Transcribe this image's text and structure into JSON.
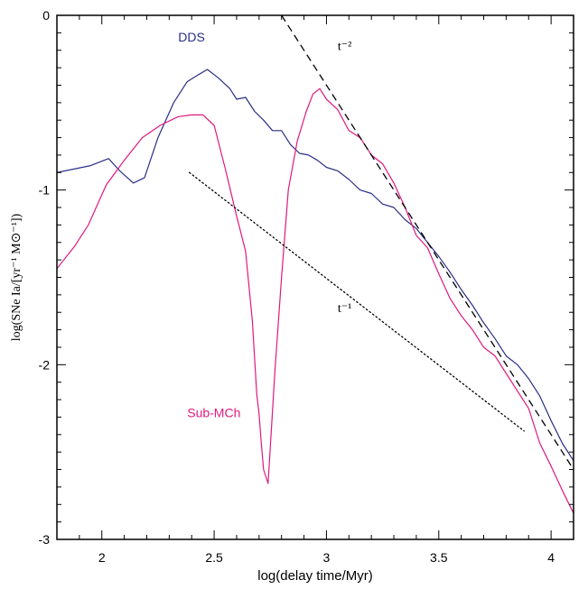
{
  "chart_data": {
    "type": "line",
    "xlabel": "log(delay time/Myr)",
    "ylabel": "log(SNe Ia/[yr⁻¹ M⊙⁻¹])",
    "xlim": [
      1.8,
      4.1
    ],
    "ylim": [
      -3,
      0
    ],
    "xticks": [
      2,
      2.5,
      3,
      3.5,
      4
    ],
    "xtick_labels": [
      "2",
      "2.5",
      "3",
      "3.5",
      "4"
    ],
    "yticks": [
      0,
      -1,
      -2,
      -3
    ],
    "ytick_labels": [
      "0",
      "-1",
      "-2",
      "-3"
    ],
    "grid": false,
    "colors": {
      "dds": "#2a2f86",
      "sub": "#e0187f",
      "ref": "#000000"
    },
    "series": [
      {
        "name": "DDS",
        "style": "solid",
        "points": [
          [
            1.8,
            -0.9
          ],
          [
            1.95,
            -0.86
          ],
          [
            2.03,
            -0.82
          ],
          [
            2.08,
            -0.89
          ],
          [
            2.14,
            -0.96
          ],
          [
            2.19,
            -0.93
          ],
          [
            2.25,
            -0.7
          ],
          [
            2.32,
            -0.5
          ],
          [
            2.38,
            -0.38
          ],
          [
            2.43,
            -0.34
          ],
          [
            2.47,
            -0.31
          ],
          [
            2.52,
            -0.36
          ],
          [
            2.57,
            -0.42
          ],
          [
            2.6,
            -0.48
          ],
          [
            2.64,
            -0.47
          ],
          [
            2.68,
            -0.55
          ],
          [
            2.72,
            -0.6
          ],
          [
            2.76,
            -0.66
          ],
          [
            2.8,
            -0.66
          ],
          [
            2.84,
            -0.74
          ],
          [
            2.88,
            -0.79
          ],
          [
            2.92,
            -0.8
          ],
          [
            2.96,
            -0.83
          ],
          [
            3.0,
            -0.87
          ],
          [
            3.05,
            -0.89
          ],
          [
            3.1,
            -0.94
          ],
          [
            3.15,
            -1.0
          ],
          [
            3.2,
            -1.02
          ],
          [
            3.25,
            -1.08
          ],
          [
            3.3,
            -1.1
          ],
          [
            3.35,
            -1.17
          ],
          [
            3.4,
            -1.22
          ],
          [
            3.45,
            -1.3
          ],
          [
            3.5,
            -1.38
          ],
          [
            3.55,
            -1.47
          ],
          [
            3.6,
            -1.57
          ],
          [
            3.65,
            -1.66
          ],
          [
            3.7,
            -1.76
          ],
          [
            3.75,
            -1.85
          ],
          [
            3.8,
            -1.95
          ],
          [
            3.85,
            -2.0
          ],
          [
            3.9,
            -2.08
          ],
          [
            3.95,
            -2.18
          ],
          [
            4.0,
            -2.32
          ],
          [
            4.05,
            -2.45
          ],
          [
            4.1,
            -2.55
          ]
        ]
      },
      {
        "name": "Sub-MCh",
        "style": "solid",
        "points": [
          [
            1.8,
            -1.45
          ],
          [
            1.88,
            -1.32
          ],
          [
            1.94,
            -1.2
          ],
          [
            2.02,
            -0.97
          ],
          [
            2.1,
            -0.83
          ],
          [
            2.18,
            -0.7
          ],
          [
            2.26,
            -0.63
          ],
          [
            2.34,
            -0.58
          ],
          [
            2.4,
            -0.57
          ],
          [
            2.45,
            -0.57
          ],
          [
            2.5,
            -0.63
          ],
          [
            2.55,
            -0.88
          ],
          [
            2.6,
            -1.15
          ],
          [
            2.64,
            -1.35
          ],
          [
            2.67,
            -1.75
          ],
          [
            2.69,
            -2.17
          ],
          [
            2.7,
            -2.28
          ],
          [
            2.71,
            -2.45
          ],
          [
            2.72,
            -2.6
          ],
          [
            2.74,
            -2.68
          ],
          [
            2.75,
            -2.47
          ],
          [
            2.77,
            -2.05
          ],
          [
            2.8,
            -1.5
          ],
          [
            2.83,
            -1.0
          ],
          [
            2.87,
            -0.72
          ],
          [
            2.91,
            -0.55
          ],
          [
            2.94,
            -0.45
          ],
          [
            2.97,
            -0.42
          ],
          [
            3.0,
            -0.48
          ],
          [
            3.05,
            -0.54
          ],
          [
            3.1,
            -0.66
          ],
          [
            3.15,
            -0.7
          ],
          [
            3.2,
            -0.8
          ],
          [
            3.25,
            -0.85
          ],
          [
            3.3,
            -0.96
          ],
          [
            3.35,
            -1.1
          ],
          [
            3.4,
            -1.26
          ],
          [
            3.45,
            -1.33
          ],
          [
            3.5,
            -1.48
          ],
          [
            3.55,
            -1.62
          ],
          [
            3.6,
            -1.72
          ],
          [
            3.65,
            -1.8
          ],
          [
            3.7,
            -1.9
          ],
          [
            3.75,
            -1.95
          ],
          [
            3.8,
            -2.05
          ],
          [
            3.85,
            -2.15
          ],
          [
            3.9,
            -2.25
          ],
          [
            3.95,
            -2.45
          ],
          [
            4.0,
            -2.58
          ],
          [
            4.05,
            -2.72
          ],
          [
            4.1,
            -2.85
          ]
        ]
      },
      {
        "name": "t⁻²",
        "style": "dashed",
        "points": [
          [
            2.8,
            0.0
          ],
          [
            4.1,
            -2.6
          ]
        ]
      },
      {
        "name": "t⁻¹",
        "style": "dotted",
        "points": [
          [
            2.39,
            -0.9
          ],
          [
            3.88,
            -2.38
          ]
        ]
      }
    ],
    "annotations": [
      {
        "text": "DDS",
        "x": 2.34,
        "y": -0.15,
        "color": "#2a2f86"
      },
      {
        "text": "Sub-MCh",
        "x": 2.38,
        "y": -2.3,
        "color": "#e0187f"
      },
      {
        "text": "t⁻²",
        "x": 3.05,
        "y": -0.2,
        "color": "#000000"
      },
      {
        "text": "t⁻¹",
        "x": 3.05,
        "y": -1.7,
        "color": "#000000"
      }
    ]
  }
}
